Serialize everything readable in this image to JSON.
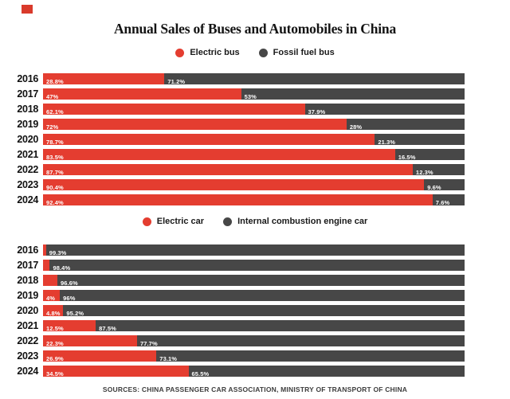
{
  "title": "Annual Sales of Buses and Automobiles in China",
  "footer": "SOURCES: CHINA PASSENGER CAR ASSOCIATION, MINISTRY OF TRANSPORT OF CHINA",
  "colors": {
    "electric_red": "#e43d30",
    "fossil_gray": "#474747",
    "brand_red": "#d93a2b"
  },
  "chart_data": [
    {
      "type": "bar",
      "orientation": "horizontal",
      "stacked": true,
      "unit": "percent",
      "xlim": [
        0,
        100
      ],
      "legend_position": "top",
      "categories": [
        "2016",
        "2017",
        "2018",
        "2019",
        "2020",
        "2021",
        "2022",
        "2023",
        "2024"
      ],
      "series": [
        {
          "name": "Electric bus",
          "color": "#e43d30",
          "values": [
            28.8,
            47,
            62.1,
            72,
            78.7,
            83.5,
            87.7,
            90.4,
            92.4
          ],
          "labels": [
            "28.8%",
            "47%",
            "62.1%",
            "72%",
            "78.7%",
            "83.5%",
            "87.7%",
            "90.4%",
            "92.4%"
          ]
        },
        {
          "name": "Fossil fuel bus",
          "color": "#474747",
          "values": [
            71.2,
            53,
            37.9,
            28,
            21.3,
            16.5,
            12.3,
            9.6,
            7.6
          ],
          "labels": [
            "71.2%",
            "53%",
            "37.9%",
            "28%",
            "21.3%",
            "16.5%",
            "12.3%",
            "9.6%",
            "7.6%"
          ]
        }
      ]
    },
    {
      "type": "bar",
      "orientation": "horizontal",
      "stacked": true,
      "unit": "percent",
      "xlim": [
        0,
        100
      ],
      "legend_position": "top",
      "categories": [
        "2016",
        "2017",
        "2018",
        "2019",
        "2020",
        "2021",
        "2022",
        "2023",
        "2024"
      ],
      "series": [
        {
          "name": "Electric car",
          "color": "#e43d30",
          "values": [
            0.7,
            1.6,
            3.4,
            4,
            4.8,
            12.5,
            22.3,
            26.9,
            34.5
          ],
          "labels": [
            "",
            "",
            "",
            "4%",
            "4.8%",
            "12.5%",
            "22.3%",
            "26.9%",
            "34.5%"
          ]
        },
        {
          "name": "Internal combustion engine car",
          "color": "#474747",
          "values": [
            99.3,
            98.4,
            96.6,
            96,
            95.2,
            87.5,
            77.7,
            73.1,
            65.5
          ],
          "labels": [
            "99.3%",
            "98.4%",
            "96.6%",
            "96%",
            "95.2%",
            "87.5%",
            "77.7%",
            "73.1%",
            "65.5%"
          ]
        }
      ]
    }
  ]
}
